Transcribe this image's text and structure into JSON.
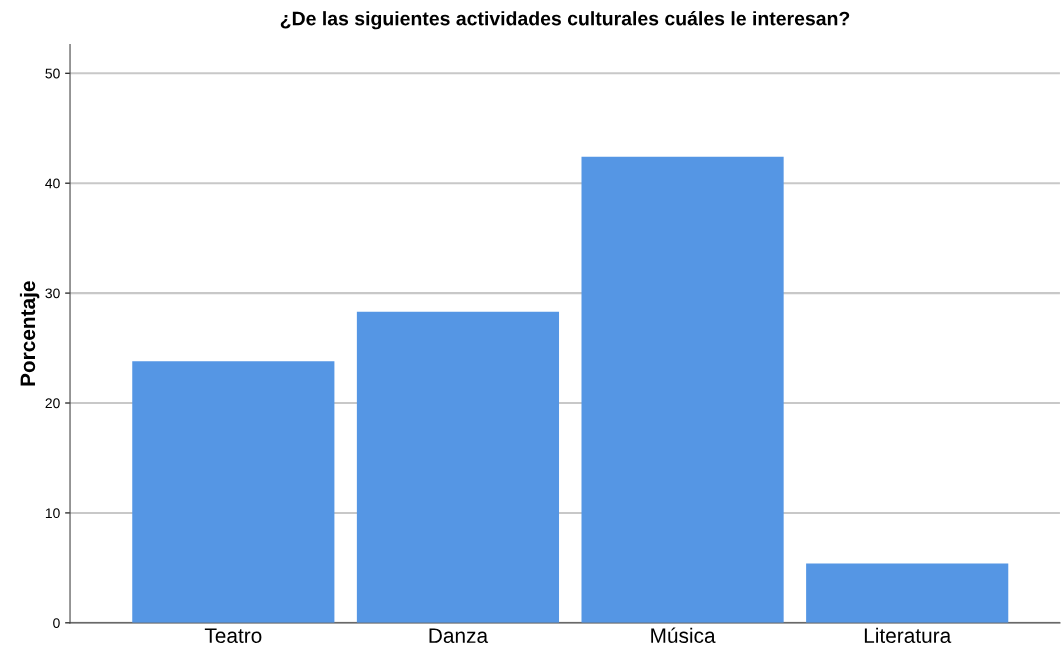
{
  "chart_data": {
    "type": "bar",
    "title": "¿De las siguientes actividades culturales cuáles le interesan?",
    "ylabel": "Porcentaje",
    "categories": [
      "Teatro",
      "Danza",
      "Música",
      "Literatura"
    ],
    "values": [
      23.8,
      28.3,
      42.4,
      5.4
    ],
    "color": "#5596e4",
    "ylim": [
      0,
      52.6
    ],
    "yticks": [
      0,
      10,
      20,
      30,
      40,
      50
    ],
    "grid": "y",
    "legend": false
  }
}
